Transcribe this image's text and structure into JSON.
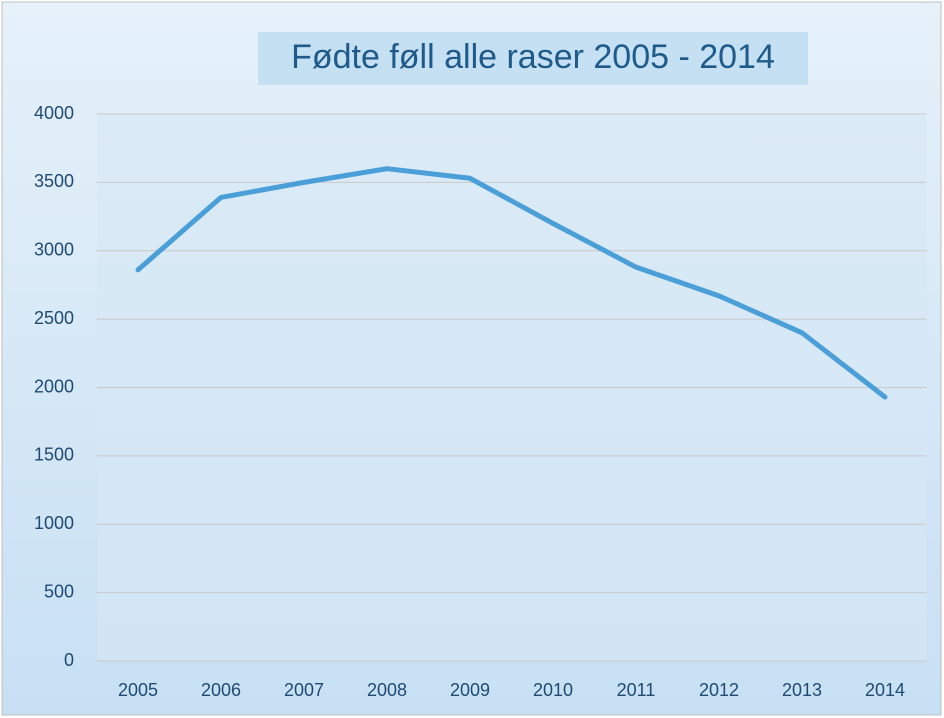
{
  "chart_data": {
    "type": "line",
    "title": "Fødte føll alle raser 2005 - 2014",
    "categories": [
      "2005",
      "2006",
      "2007",
      "2008",
      "2009",
      "2010",
      "2011",
      "2012",
      "2013",
      "2014"
    ],
    "series": [
      {
        "name": "Fødte føll",
        "color": "#4a9fd8",
        "values": [
          2860,
          3390,
          3500,
          3600,
          3530,
          3200,
          2880,
          2670,
          2400,
          1930
        ]
      }
    ],
    "ylim": [
      0,
      4000
    ],
    "yticks": [
      0,
      500,
      1000,
      1500,
      2000,
      2500,
      3000,
      3500,
      4000
    ],
    "grid": true
  }
}
